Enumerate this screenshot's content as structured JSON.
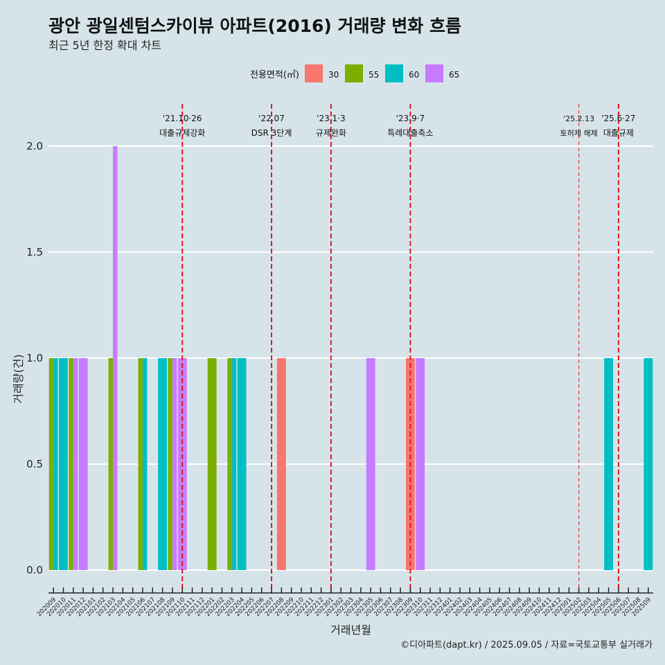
{
  "header": {
    "title": "광안 광일센텀스카이뷰 아파트(2016) 거래량 변화 흐름",
    "subtitle": "최근 5년 한정 확대 차트"
  },
  "caption": "©디아파트(dapt.kr) / 2025.09.05 / 자료=국토교통부 실거래가",
  "colors": {
    "30": "#f8766d",
    "55": "#7cae00",
    "60": "#00bfc4",
    "65": "#c77cff",
    "background": "#d6e4ea",
    "event_line": "#e8141c"
  },
  "chart_data": {
    "type": "bar",
    "title": "광안 광일센텀스카이뷰 아파트(2016) 거래량 변화 흐름",
    "xlabel": "거래년월",
    "ylabel": "거래량(건)",
    "ylim": [
      0,
      2
    ],
    "yticks": [
      "0.0",
      "0.5",
      "1.0",
      "1.5",
      "2.0"
    ],
    "grid": true,
    "legend_title": "전용면적(㎡)",
    "legend_position": "top",
    "categories": [
      "202009",
      "202010",
      "202011",
      "202012",
      "202101",
      "202102",
      "202103",
      "202104",
      "202105",
      "202106",
      "202107",
      "202108",
      "202109",
      "202110",
      "202111",
      "202112",
      "202201",
      "202202",
      "202203",
      "202204",
      "202205",
      "202206",
      "202207",
      "202208",
      "202209",
      "202210",
      "202211",
      "202212",
      "202301",
      "202302",
      "202303",
      "202304",
      "202305",
      "202306",
      "202307",
      "202308",
      "202309",
      "202310",
      "202311",
      "202312",
      "202401",
      "202402",
      "202403",
      "202404",
      "202405",
      "202406",
      "202407",
      "202408",
      "202409",
      "202410",
      "202411",
      "202412",
      "202501",
      "202502",
      "202503",
      "202504",
      "202505",
      "202506",
      "202507",
      "202508",
      "202509"
    ],
    "series": [
      {
        "name": "30",
        "points": [
          {
            "x": "202208",
            "y": 1
          },
          {
            "x": "202309",
            "y": 1
          }
        ]
      },
      {
        "name": "55",
        "points": [
          {
            "x": "202009",
            "y": 1
          },
          {
            "x": "202011",
            "y": 1
          },
          {
            "x": "202103",
            "y": 1
          },
          {
            "x": "202106",
            "y": 1
          },
          {
            "x": "202109",
            "y": 1
          },
          {
            "x": "202201",
            "y": 1
          },
          {
            "x": "202203",
            "y": 1
          }
        ]
      },
      {
        "name": "60",
        "points": [
          {
            "x": "202009",
            "y": 1
          },
          {
            "x": "202010",
            "y": 1
          },
          {
            "x": "202106",
            "y": 1
          },
          {
            "x": "202108",
            "y": 1
          },
          {
            "x": "202203",
            "y": 1
          },
          {
            "x": "202204",
            "y": 1
          },
          {
            "x": "202505",
            "y": 1
          },
          {
            "x": "202509",
            "y": 1
          }
        ]
      },
      {
        "name": "65",
        "points": [
          {
            "x": "202011",
            "y": 1
          },
          {
            "x": "202012",
            "y": 1
          },
          {
            "x": "202103",
            "y": 2
          },
          {
            "x": "202109",
            "y": 1
          },
          {
            "x": "202110",
            "y": 1
          },
          {
            "x": "202305",
            "y": 1
          },
          {
            "x": "202310",
            "y": 1
          }
        ]
      }
    ],
    "annotations": [
      {
        "month": "202110",
        "line1": "'21.10·26",
        "line2": "대출규제강화",
        "style": "bold-dashed"
      },
      {
        "month": "202207",
        "line1": "'22.07",
        "line2": "DSR 3단계",
        "style": "bold-dashed"
      },
      {
        "month": "202301",
        "line1": "'23.1·3",
        "line2": "규제완화",
        "style": "bold-dashed"
      },
      {
        "month": "202309",
        "line1": "'23.9·7",
        "line2": "특례대출축소",
        "style": "bold-dashed"
      },
      {
        "month": "202502",
        "line1": "'25.2.13",
        "line2": "토허제 해제",
        "style": "thin-dashed"
      },
      {
        "month": "202506",
        "line1": "'25.6·27",
        "line2": "대출규제",
        "style": "bold-dashed"
      }
    ]
  }
}
